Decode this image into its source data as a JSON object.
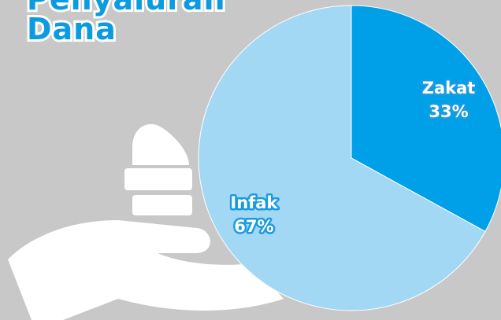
{
  "chart_data": {
    "type": "pie",
    "title": "Penyaluran Dana",
    "categories": [
      "Zakat",
      "Infak"
    ],
    "values": [
      33,
      67
    ],
    "value_labels": [
      "33%",
      "67%"
    ],
    "colors": [
      "#00a0e9",
      "#a3d8f5"
    ]
  }
}
